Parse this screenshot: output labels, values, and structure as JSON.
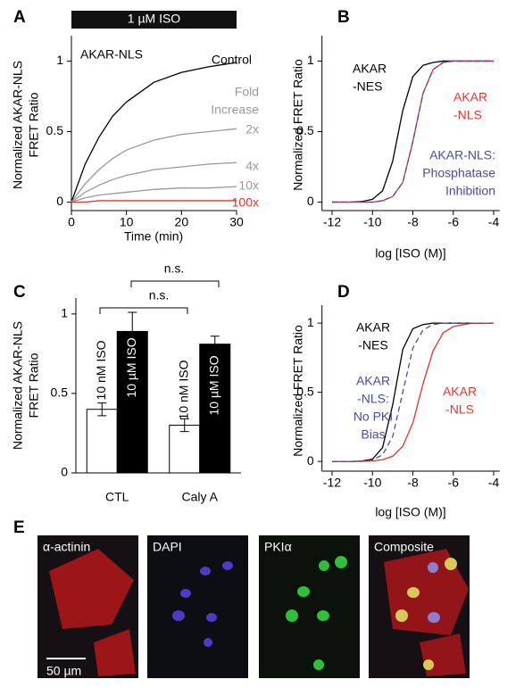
{
  "chart_data": [
    {
      "panel": "A",
      "type": "line",
      "stimulus": "1 µM ISO",
      "xlabel": "Time (min)",
      "ylabel": [
        "Normalized AKAR-NLS",
        "FRET Ratio"
      ],
      "x": [
        0,
        2.5,
        5,
        7.5,
        10,
        15,
        20,
        25,
        30
      ],
      "xlim": [
        0,
        30
      ],
      "xticks": [
        0,
        10,
        20,
        30
      ],
      "ylim": [
        -0.06,
        1.18
      ],
      "yticks": [
        0,
        0.5,
        1
      ],
      "annotations": [
        {
          "text": "AKAR-NLS",
          "color": "#000000"
        },
        {
          "text": "Fold",
          "color": "#999999"
        },
        {
          "text": "Increase",
          "color": "#999999"
        }
      ],
      "series": [
        {
          "name": "Control",
          "color": "#000000",
          "values": [
            0,
            0.27,
            0.46,
            0.61,
            0.71,
            0.85,
            0.92,
            0.96,
            0.99
          ]
        },
        {
          "name": "2x",
          "color": "#999999",
          "values": [
            0,
            0.13,
            0.23,
            0.31,
            0.37,
            0.44,
            0.48,
            0.5,
            0.52
          ]
        },
        {
          "name": "4x",
          "color": "#999999",
          "values": [
            0,
            0.07,
            0.12,
            0.16,
            0.19,
            0.23,
            0.25,
            0.27,
            0.28
          ]
        },
        {
          "name": "10x",
          "color": "#999999",
          "values": [
            0,
            0.03,
            0.05,
            0.06,
            0.07,
            0.09,
            0.1,
            0.1,
            0.11
          ]
        },
        {
          "name": "100x",
          "color": "#e8322a",
          "values": [
            0,
            0,
            0.01,
            0.01,
            0.01,
            0.01,
            0.01,
            0.01,
            0.01
          ]
        }
      ]
    },
    {
      "panel": "B",
      "type": "line",
      "xlabel": "log [ISO (M)]",
      "ylabel": [
        "Normalized FRET Ratio"
      ],
      "x": [
        -12,
        -11.5,
        -11,
        -10.5,
        -10,
        -9.5,
        -9,
        -8.5,
        -8,
        -7.5,
        -7,
        -6.5,
        -6,
        -5.5,
        -5,
        -4.5,
        -4
      ],
      "xlim": [
        -12.5,
        -3.7
      ],
      "xticks": [
        -12,
        -10,
        -8,
        -6,
        -4
      ],
      "ylim": [
        -0.06,
        1.18
      ],
      "yticks": [
        0,
        0.5,
        1
      ],
      "series": [
        {
          "label_lines": [
            "AKAR",
            "-NES"
          ],
          "color": "#000000",
          "linestyle": "solid",
          "values": [
            0,
            0,
            0.001,
            0.005,
            0.02,
            0.08,
            0.29,
            0.65,
            0.89,
            0.97,
            0.99,
            1,
            1,
            1,
            1,
            1,
            1
          ]
        },
        {
          "label_lines": [
            "AKAR",
            "-NLS"
          ],
          "color": "#e8322a",
          "linestyle": "solid",
          "values": [
            0,
            0,
            0,
            0,
            0,
            0.01,
            0.04,
            0.14,
            0.43,
            0.77,
            0.94,
            0.99,
            1,
            1,
            1,
            1,
            1
          ]
        },
        {
          "label_lines": [
            "AKAR-NLS:",
            "Phosphatase",
            "Inhibition"
          ],
          "color": "#4a4aa8",
          "linestyle": "dashed",
          "values": [
            0,
            0,
            0,
            0,
            0,
            0.01,
            0.04,
            0.14,
            0.43,
            0.77,
            0.94,
            0.99,
            1,
            1,
            1,
            1,
            1
          ]
        }
      ]
    },
    {
      "panel": "C",
      "type": "bar",
      "ylabel": [
        "Normalized AKAR-NLS",
        "FRET Ratio"
      ],
      "categories": [
        "CTL",
        "Caly A"
      ],
      "ylim": [
        0,
        1.1
      ],
      "yticks": [
        0,
        0.5,
        1
      ],
      "annotations": [
        {
          "text": "n.s.",
          "color": "#000000"
        },
        {
          "text": "n.s.",
          "color": "#000000"
        }
      ],
      "series": [
        {
          "name": "10 nM ISO",
          "color": "#ffffff",
          "values": [
            0.4,
            0.3
          ],
          "errors": [
            0.04,
            0.04
          ]
        },
        {
          "name": "10 µM ISO",
          "color": "#000000",
          "values": [
            0.89,
            0.81
          ],
          "errors": [
            0.12,
            0.05
          ]
        }
      ]
    },
    {
      "panel": "D",
      "type": "line",
      "xlabel": "log [ISO (M)]",
      "ylabel": [
        "Normalized FRET Ratio"
      ],
      "x": [
        -12,
        -11.5,
        -11,
        -10.5,
        -10,
        -9.5,
        -9,
        -8.5,
        -8,
        -7.5,
        -7,
        -6.5,
        -6,
        -5.5,
        -5,
        -4.5,
        -4
      ],
      "xlim": [
        -12.5,
        -3.7
      ],
      "xticks": [
        -12,
        -10,
        -8,
        -6,
        -4
      ],
      "ylim": [
        -0.07,
        1.13
      ],
      "yticks": [
        0,
        0.5,
        1
      ],
      "series": [
        {
          "label_lines": [
            "AKAR",
            "-NES"
          ],
          "color": "#000000",
          "linestyle": "solid",
          "values": [
            0,
            0,
            0,
            0.003,
            0.017,
            0.1,
            0.41,
            0.81,
            0.96,
            0.99,
            1,
            1,
            1,
            1,
            1,
            1,
            1
          ]
        },
        {
          "label_lines": [
            "AKAR",
            "-NLS"
          ],
          "color": "#e8322a",
          "linestyle": "solid",
          "values": [
            0,
            0,
            0,
            0.001,
            0.004,
            0.012,
            0.038,
            0.11,
            0.28,
            0.56,
            0.8,
            0.93,
            0.975,
            0.99,
            1,
            1,
            1
          ]
        },
        {
          "label_lines": [
            "AKAR",
            "-NLS:",
            "No PKI",
            "Bias"
          ],
          "color": "#4a4aa8",
          "linestyle": "dashed",
          "values": [
            0,
            0,
            0,
            0.002,
            0.011,
            0.048,
            0.18,
            0.5,
            0.82,
            0.95,
            0.99,
            1,
            1,
            1,
            1,
            1,
            1
          ]
        }
      ]
    }
  ],
  "images": {
    "panel": "E",
    "labels": [
      "α-actinin",
      "DAPI",
      "PKIα",
      "Composite"
    ],
    "scale_bar": "50 µm"
  }
}
